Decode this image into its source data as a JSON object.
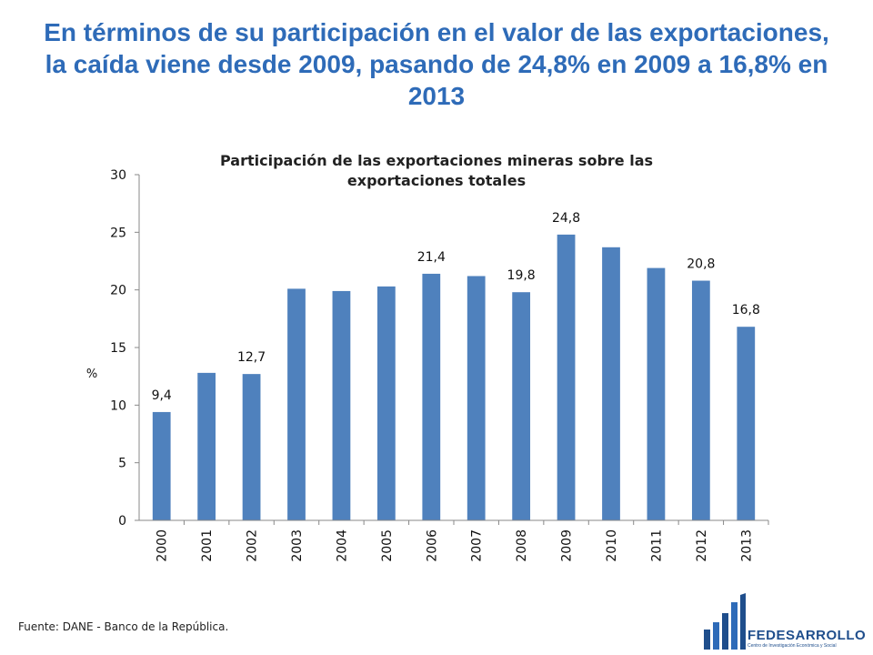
{
  "slide": {
    "headline": "En términos de su participación en el valor de las exportaciones, la caída viene desde 2009, pasando de 24,8% en 2009 a 16,8% en 2013",
    "source": "Fuente: DANE - Banco de la República."
  },
  "logo": {
    "name": "FEDESARROLLO",
    "subtitle": "Centro de Investigación Económica y Social"
  },
  "chart_data": {
    "type": "bar",
    "title": "Participación de las exportaciones mineras sobre las exportaciones totales",
    "ylabel": "%",
    "xlabel": "",
    "ylim": [
      0,
      30
    ],
    "yticks": [
      0,
      5,
      10,
      15,
      20,
      25,
      30
    ],
    "grid": false,
    "categories": [
      "2000",
      "2001",
      "2002",
      "2003",
      "2004",
      "2005",
      "2006",
      "2007",
      "2008",
      "2009",
      "2010",
      "2011",
      "2012",
      "2013"
    ],
    "values": [
      9.4,
      12.8,
      12.7,
      20.1,
      19.9,
      20.3,
      21.4,
      21.2,
      19.8,
      24.8,
      23.7,
      21.9,
      20.8,
      16.8
    ],
    "data_labels": [
      "9,4",
      "",
      "12,7",
      "",
      "",
      "",
      "21,4",
      "",
      "19,8",
      "24,8",
      "",
      "",
      "20,8",
      "16,8"
    ],
    "bar_color": "#4f81bd"
  }
}
